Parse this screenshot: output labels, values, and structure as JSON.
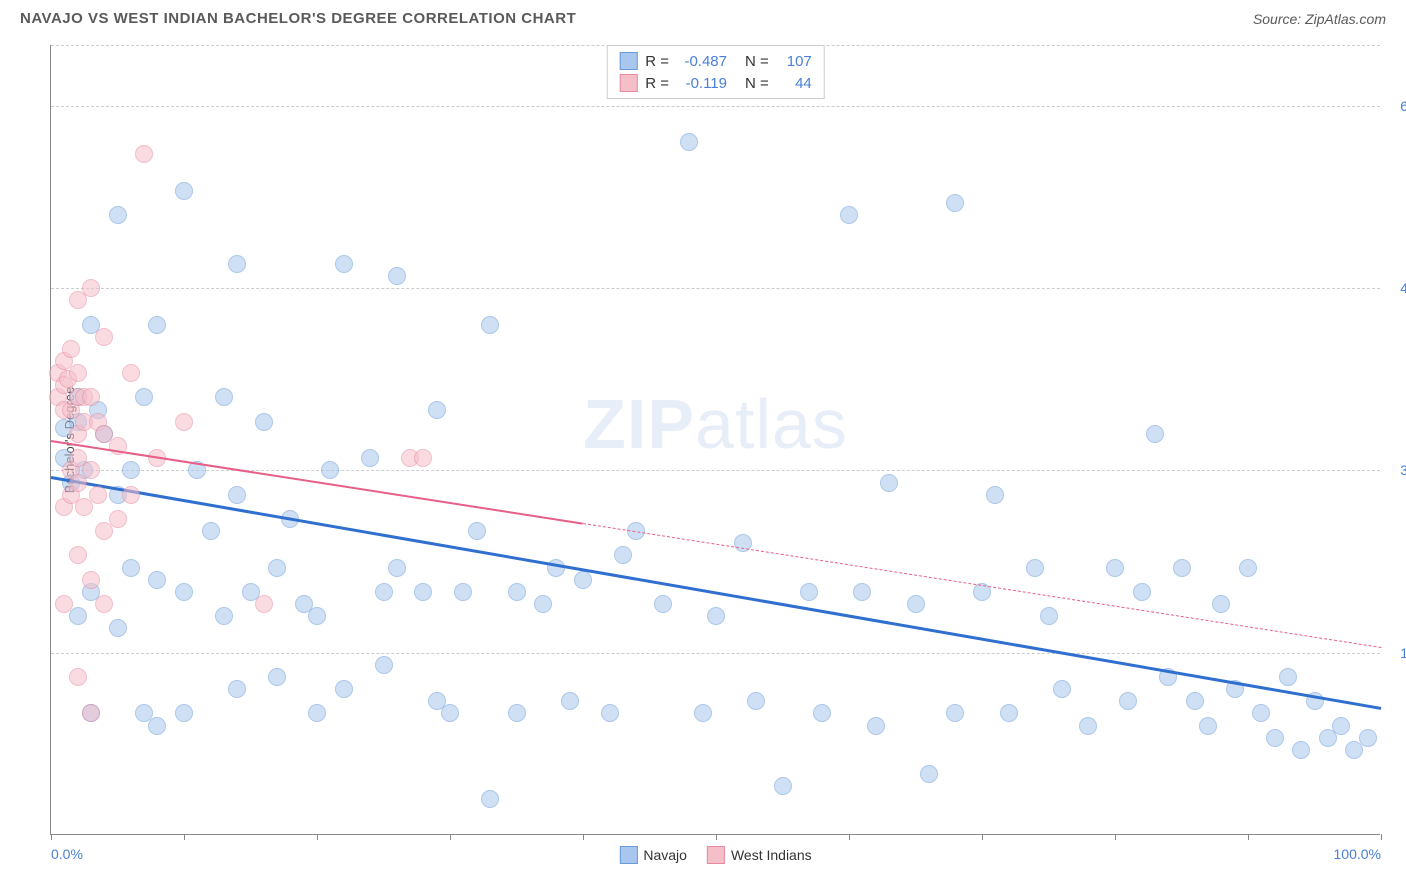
{
  "title": "NAVAJO VS WEST INDIAN BACHELOR'S DEGREE CORRELATION CHART",
  "source": "Source: ZipAtlas.com",
  "watermark_bold": "ZIP",
  "watermark_light": "atlas",
  "chart": {
    "type": "scatter",
    "y_axis_label": "Bachelor's Degree",
    "xlim": [
      0,
      100
    ],
    "ylim": [
      0,
      65
    ],
    "x_ticks": [
      0,
      10,
      20,
      30,
      40,
      50,
      60,
      70,
      80,
      90,
      100
    ],
    "x_tick_labels": {
      "0": "0.0%",
      "100": "100.0%"
    },
    "y_grid": [
      15,
      30,
      45,
      60,
      65
    ],
    "y_tick_labels": {
      "15": "15.0%",
      "30": "30.0%",
      "45": "45.0%",
      "60": "60.0%"
    },
    "grid_color": "#cccccc",
    "background_color": "#ffffff",
    "axis_color": "#888888",
    "tick_label_color": "#4a7fd6",
    "point_radius": 9,
    "point_opacity": 0.55,
    "series": [
      {
        "name": "Navajo",
        "fill_color": "#a9c7ee",
        "stroke_color": "#6a9bd8",
        "stats": {
          "R": "-0.487",
          "N": "107"
        },
        "trend": {
          "x1": 0,
          "y1": 29.5,
          "x2": 100,
          "y2": 10.5,
          "color": "#2f6fd0",
          "width": 2.5,
          "dash_from_x": null
        },
        "points": [
          [
            1,
            31
          ],
          [
            1,
            33.5
          ],
          [
            1.5,
            29
          ],
          [
            2,
            36
          ],
          [
            2,
            34
          ],
          [
            2.5,
            30
          ],
          [
            2,
            18
          ],
          [
            3,
            42
          ],
          [
            3,
            20
          ],
          [
            3.5,
            35
          ],
          [
            3,
            10
          ],
          [
            4,
            33
          ],
          [
            5,
            51
          ],
          [
            5,
            28
          ],
          [
            5,
            17
          ],
          [
            6,
            30
          ],
          [
            6,
            22
          ],
          [
            7,
            36
          ],
          [
            7,
            10
          ],
          [
            8,
            42
          ],
          [
            8,
            21
          ],
          [
            8,
            9
          ],
          [
            10,
            53
          ],
          [
            10,
            20
          ],
          [
            10,
            10
          ],
          [
            11,
            30
          ],
          [
            12,
            25
          ],
          [
            13,
            36
          ],
          [
            13,
            18
          ],
          [
            14,
            47
          ],
          [
            14,
            28
          ],
          [
            14,
            12
          ],
          [
            15,
            20
          ],
          [
            16,
            34
          ],
          [
            17,
            13
          ],
          [
            17,
            22
          ],
          [
            18,
            26
          ],
          [
            19,
            19
          ],
          [
            20,
            18
          ],
          [
            20,
            10
          ],
          [
            21,
            30
          ],
          [
            22,
            47
          ],
          [
            22,
            12
          ],
          [
            24,
            31
          ],
          [
            25,
            20
          ],
          [
            25,
            14
          ],
          [
            26,
            46
          ],
          [
            26,
            22
          ],
          [
            28,
            20
          ],
          [
            29,
            35
          ],
          [
            29,
            11
          ],
          [
            30,
            10
          ],
          [
            31,
            20
          ],
          [
            32,
            25
          ],
          [
            33,
            42
          ],
          [
            33,
            3
          ],
          [
            35,
            20
          ],
          [
            35,
            10
          ],
          [
            37,
            19
          ],
          [
            38,
            22
          ],
          [
            39,
            11
          ],
          [
            40,
            21
          ],
          [
            42,
            10
          ],
          [
            43,
            23
          ],
          [
            44,
            25
          ],
          [
            46,
            19
          ],
          [
            48,
            57
          ],
          [
            49,
            10
          ],
          [
            50,
            18
          ],
          [
            52,
            24
          ],
          [
            53,
            11
          ],
          [
            55,
            4
          ],
          [
            57,
            20
          ],
          [
            58,
            10
          ],
          [
            60,
            51
          ],
          [
            61,
            20
          ],
          [
            62,
            9
          ],
          [
            63,
            29
          ],
          [
            65,
            19
          ],
          [
            66,
            5
          ],
          [
            68,
            52
          ],
          [
            68,
            10
          ],
          [
            70,
            20
          ],
          [
            71,
            28
          ],
          [
            72,
            10
          ],
          [
            74,
            22
          ],
          [
            75,
            18
          ],
          [
            76,
            12
          ],
          [
            78,
            9
          ],
          [
            80,
            22
          ],
          [
            81,
            11
          ],
          [
            82,
            20
          ],
          [
            83,
            33
          ],
          [
            84,
            13
          ],
          [
            85,
            22
          ],
          [
            86,
            11
          ],
          [
            87,
            9
          ],
          [
            88,
            19
          ],
          [
            89,
            12
          ],
          [
            90,
            22
          ],
          [
            91,
            10
          ],
          [
            92,
            8
          ],
          [
            93,
            13
          ],
          [
            94,
            7
          ],
          [
            95,
            11
          ],
          [
            96,
            8
          ],
          [
            97,
            9
          ],
          [
            98,
            7
          ],
          [
            99,
            8
          ]
        ]
      },
      {
        "name": "West Indians",
        "fill_color": "#f5bfca",
        "stroke_color": "#e88aa0",
        "stats": {
          "R": "-0.119",
          "N": "44"
        },
        "trend": {
          "x1": 0,
          "y1": 32.5,
          "x2": 100,
          "y2": 15.5,
          "color": "#e75f88",
          "width": 1.8,
          "dash_from_x": 40
        },
        "points": [
          [
            0.5,
            38
          ],
          [
            0.5,
            36
          ],
          [
            1,
            39
          ],
          [
            1,
            37
          ],
          [
            1,
            35
          ],
          [
            1,
            27
          ],
          [
            1,
            19
          ],
          [
            1.3,
            37.5
          ],
          [
            1.5,
            40
          ],
          [
            1.5,
            35
          ],
          [
            1.5,
            30
          ],
          [
            1.5,
            28
          ],
          [
            2,
            44
          ],
          [
            2,
            38
          ],
          [
            2,
            36
          ],
          [
            2,
            33
          ],
          [
            2,
            31
          ],
          [
            2,
            29
          ],
          [
            2,
            23
          ],
          [
            2,
            13
          ],
          [
            2.5,
            36
          ],
          [
            2.5,
            34
          ],
          [
            2.5,
            27
          ],
          [
            3,
            45
          ],
          [
            3,
            36
          ],
          [
            3,
            30
          ],
          [
            3,
            21
          ],
          [
            3,
            10
          ],
          [
            3.5,
            34
          ],
          [
            3.5,
            28
          ],
          [
            4,
            41
          ],
          [
            4,
            33
          ],
          [
            4,
            25
          ],
          [
            4,
            19
          ],
          [
            5,
            32
          ],
          [
            5,
            26
          ],
          [
            6,
            38
          ],
          [
            6,
            28
          ],
          [
            7,
            56
          ],
          [
            8,
            31
          ],
          [
            10,
            34
          ],
          [
            16,
            19
          ],
          [
            27,
            31
          ],
          [
            28,
            31
          ]
        ]
      }
    ],
    "stats_box": {
      "r_label": "R =",
      "n_label": "N ="
    },
    "legend": [
      {
        "label": "Navajo",
        "fill": "#a9c7ee",
        "stroke": "#6a9bd8"
      },
      {
        "label": "West Indians",
        "fill": "#f5bfca",
        "stroke": "#e88aa0"
      }
    ]
  }
}
